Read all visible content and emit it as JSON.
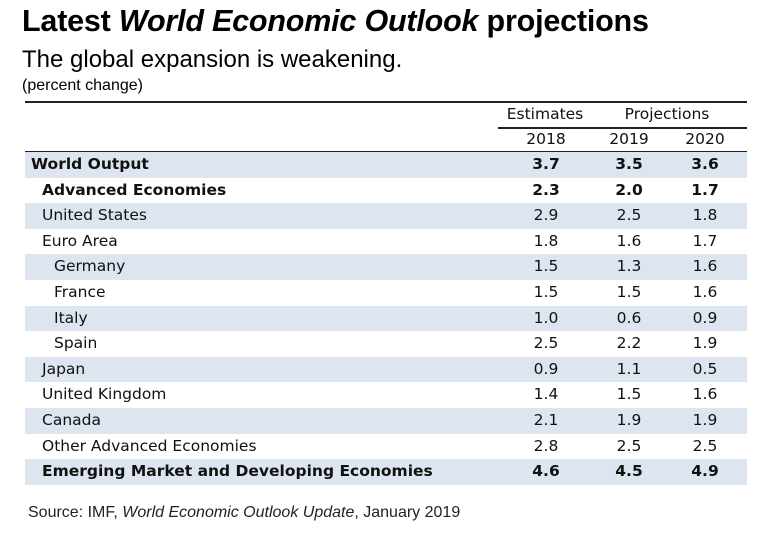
{
  "header": {
    "title_prefix": "Latest ",
    "title_italic": "World Economic Outlook",
    "title_suffix": " projections",
    "subtitle": "The global expansion is weakening.",
    "unit": "(percent change)"
  },
  "columns": {
    "group_estimates": "Estimates",
    "group_projections": "Projections",
    "years": [
      "2018",
      "2019",
      "2020"
    ]
  },
  "source": {
    "prefix": "Source: IMF, ",
    "italic": "World Economic Outlook Update",
    "suffix": ", January 2019"
  },
  "chart_data": {
    "type": "table",
    "title": "Latest World Economic Outlook projections",
    "subtitle": "The global expansion is weakening.",
    "unit": "percent change",
    "column_groups": [
      {
        "label": "Estimates",
        "columns": [
          "2018"
        ]
      },
      {
        "label": "Projections",
        "columns": [
          "2019",
          "2020"
        ]
      }
    ],
    "columns": [
      "2018",
      "2019",
      "2020"
    ],
    "rows": [
      {
        "label": "World Output",
        "level": 0,
        "bold": true,
        "values": [
          "3.7",
          "3.5",
          "3.6"
        ]
      },
      {
        "label": "Advanced Economies",
        "level": 1,
        "bold": true,
        "values": [
          "2.3",
          "2.0",
          "1.7"
        ]
      },
      {
        "label": "United States",
        "level": 1,
        "bold": false,
        "values": [
          "2.9",
          "2.5",
          "1.8"
        ]
      },
      {
        "label": "Euro Area",
        "level": 1,
        "bold": false,
        "values": [
          "1.8",
          "1.6",
          "1.7"
        ]
      },
      {
        "label": "Germany",
        "level": 2,
        "bold": false,
        "values": [
          "1.5",
          "1.3",
          "1.6"
        ]
      },
      {
        "label": "France",
        "level": 2,
        "bold": false,
        "values": [
          "1.5",
          "1.5",
          "1.6"
        ]
      },
      {
        "label": "Italy",
        "level": 2,
        "bold": false,
        "values": [
          "1.0",
          "0.6",
          "0.9"
        ]
      },
      {
        "label": "Spain",
        "level": 2,
        "bold": false,
        "values": [
          "2.5",
          "2.2",
          "1.9"
        ]
      },
      {
        "label": "Japan",
        "level": 1,
        "bold": false,
        "values": [
          "0.9",
          "1.1",
          "0.5"
        ]
      },
      {
        "label": "United Kingdom",
        "level": 1,
        "bold": false,
        "values": [
          "1.4",
          "1.5",
          "1.6"
        ]
      },
      {
        "label": "Canada",
        "level": 1,
        "bold": false,
        "values": [
          "2.1",
          "1.9",
          "1.9"
        ]
      },
      {
        "label": "Other Advanced Economies",
        "level": 1,
        "bold": false,
        "values": [
          "2.8",
          "2.5",
          "2.5"
        ]
      },
      {
        "label": "Emerging Market and Developing Economies",
        "level": 1,
        "bold": true,
        "values": [
          "4.6",
          "4.5",
          "4.9"
        ]
      }
    ],
    "source": "Source: IMF, World Economic Outlook Update, January 2019"
  }
}
